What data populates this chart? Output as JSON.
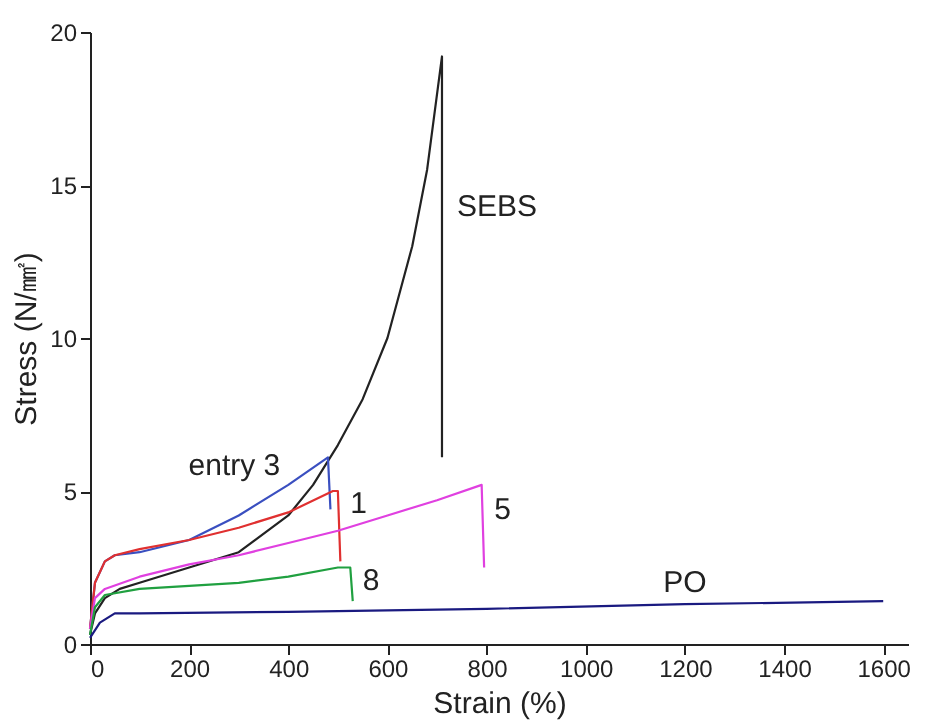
{
  "chart_data": {
    "type": "line",
    "xlabel": "Strain (%)",
    "ylabel": "Stress (N/㎟)",
    "xlim": [
      0,
      1650
    ],
    "ylim": [
      0,
      20
    ],
    "xticks": [
      0,
      200,
      400,
      600,
      800,
      1000,
      1200,
      1400,
      1600
    ],
    "yticks": [
      0,
      5,
      10,
      15,
      20
    ],
    "grid": false,
    "legend": false,
    "line_style": "solid",
    "marker": "none",
    "series": [
      {
        "color": "#222222",
        "x": [
          0,
          10,
          30,
          60,
          100,
          200,
          300,
          400,
          450,
          500,
          550,
          600,
          650,
          680,
          710,
          710
        ],
        "values": [
          0.3,
          1.0,
          1.5,
          1.8,
          2.0,
          2.5,
          3.0,
          4.2,
          5.2,
          6.5,
          8.0,
          10.0,
          13.0,
          15.5,
          19.2,
          6.1
        ]
      },
      {
        "color": "#3a4fc0",
        "x": [
          0,
          10,
          30,
          50,
          100,
          200,
          250,
          300,
          400,
          480,
          485
        ],
        "values": [
          0.5,
          2.0,
          2.7,
          2.9,
          3.0,
          3.4,
          3.8,
          4.2,
          5.2,
          6.1,
          4.4
        ]
      },
      {
        "color": "#e03030",
        "x": [
          0,
          10,
          30,
          50,
          100,
          200,
          300,
          400,
          490,
          500,
          505
        ],
        "values": [
          0.5,
          2.0,
          2.7,
          2.9,
          3.1,
          3.4,
          3.8,
          4.3,
          5.0,
          5.0,
          2.7
        ]
      },
      {
        "color": "#e040e0",
        "x": [
          0,
          10,
          30,
          100,
          200,
          300,
          400,
          500,
          600,
          700,
          790,
          795
        ],
        "values": [
          0.5,
          1.5,
          1.8,
          2.2,
          2.6,
          2.9,
          3.3,
          3.7,
          4.2,
          4.7,
          5.2,
          2.5
        ]
      },
      {
        "color": "#20a040",
        "x": [
          0,
          10,
          30,
          100,
          200,
          300,
          400,
          500,
          525,
          530
        ],
        "values": [
          0.3,
          1.2,
          1.6,
          1.8,
          1.9,
          2.0,
          2.2,
          2.5,
          2.5,
          1.4
        ]
      },
      {
        "color": "#1a1a80",
        "x": [
          0,
          20,
          50,
          100,
          400,
          800,
          1200,
          1600
        ],
        "values": [
          0.2,
          0.7,
          1.0,
          1.0,
          1.05,
          1.15,
          1.3,
          1.4
        ]
      }
    ],
    "annotations": [
      {
        "text": "SEBS",
        "x": 720,
        "y": 14.3
      },
      {
        "text": "entry 3",
        "x": 400,
        "y": 5.2
      },
      {
        "text": "1",
        "x": 505,
        "y": 4.6
      },
      {
        "text": "5",
        "x": 795,
        "y": 4.4
      },
      {
        "text": "8",
        "x": 530,
        "y": 2.1
      },
      {
        "text": "PO",
        "x": 1200,
        "y": 1.3
      }
    ]
  }
}
